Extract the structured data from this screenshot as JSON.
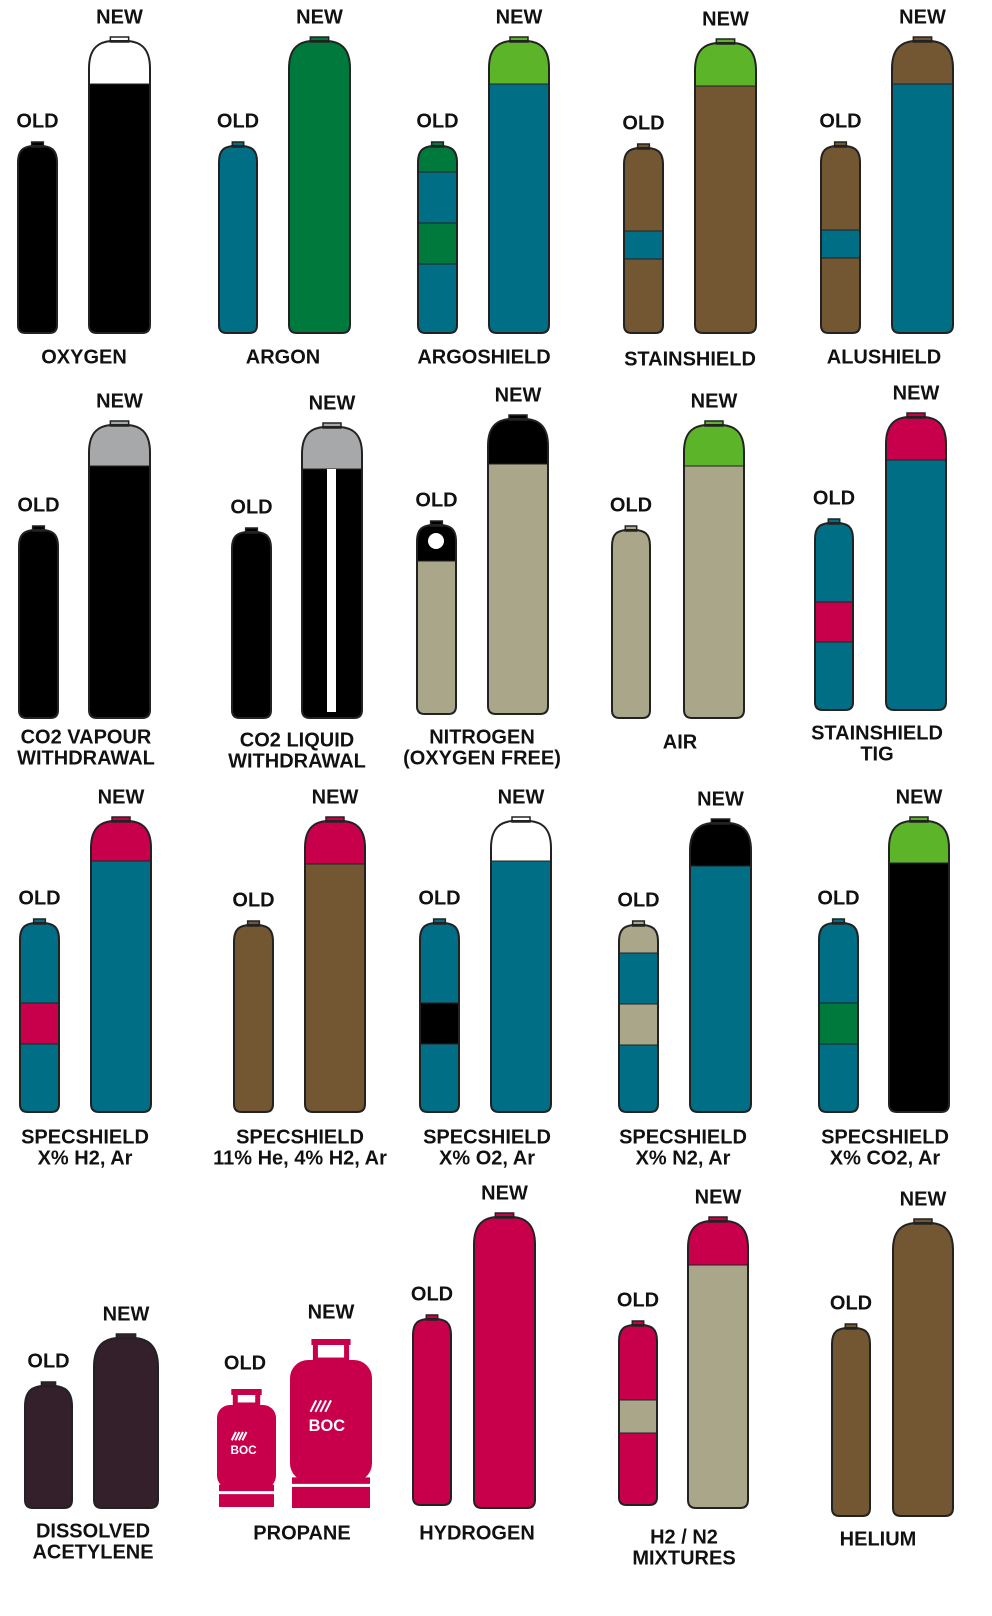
{
  "items": [
    {
      "old": "OLD",
      "new": "NEW",
      "name": [
        "OXYGEN"
      ]
    },
    {
      "old": "OLD",
      "new": "NEW",
      "name": [
        "ARGON"
      ]
    },
    {
      "old": "OLD",
      "new": "NEW",
      "name": [
        "ARGOSHIELD"
      ]
    },
    {
      "old": "OLD",
      "new": "NEW",
      "name": [
        "STAINSHIELD"
      ]
    },
    {
      "old": "OLD",
      "new": "NEW",
      "name": [
        "ALUSHIELD"
      ]
    },
    {
      "old": "OLD",
      "new": "NEW",
      "name": [
        "CO2 VAPOUR",
        "WITHDRAWAL"
      ]
    },
    {
      "old": "OLD",
      "new": "NEW",
      "name": [
        "CO2 LIQUID",
        "WITHDRAWAL"
      ]
    },
    {
      "old": "OLD",
      "new": "NEW",
      "name": [
        "NITROGEN",
        "(OXYGEN FREE)"
      ]
    },
    {
      "old": "OLD",
      "new": "NEW",
      "name": [
        "AIR"
      ]
    },
    {
      "old": "OLD",
      "new": "NEW",
      "name": [
        "STAINSHIELD",
        "TIG"
      ]
    },
    {
      "old": "OLD",
      "new": "NEW",
      "name": [
        "SPECSHIELD",
        "X% H2, Ar"
      ]
    },
    {
      "old": "OLD",
      "new": "NEW",
      "name": [
        "SPECSHIELD",
        "11% He, 4% H2, Ar"
      ]
    },
    {
      "old": "OLD",
      "new": "NEW",
      "name": [
        "SPECSHIELD",
        "X% O2, Ar"
      ]
    },
    {
      "old": "OLD",
      "new": "NEW",
      "name": [
        "SPECSHIELD",
        "X% N2, Ar"
      ]
    },
    {
      "old": "OLD",
      "new": "NEW",
      "name": [
        "SPECSHIELD",
        "X% CO2, Ar"
      ]
    },
    {
      "old": "OLD",
      "new": "NEW",
      "name": [
        "DISSOLVED",
        "ACETYLENE"
      ]
    },
    {
      "old": "OLD",
      "new": "NEW",
      "name": [
        "PROPANE"
      ],
      "logos": [
        "BOC",
        "BOC"
      ]
    },
    {
      "old": "OLD",
      "new": "NEW",
      "name": [
        "HYDROGEN"
      ]
    },
    {
      "old": "OLD",
      "new": "NEW",
      "name": [
        "H2 / N2",
        "MIXTURES"
      ]
    },
    {
      "old": "OLD",
      "new": "NEW",
      "name": [
        "HELIUM"
      ]
    }
  ]
}
